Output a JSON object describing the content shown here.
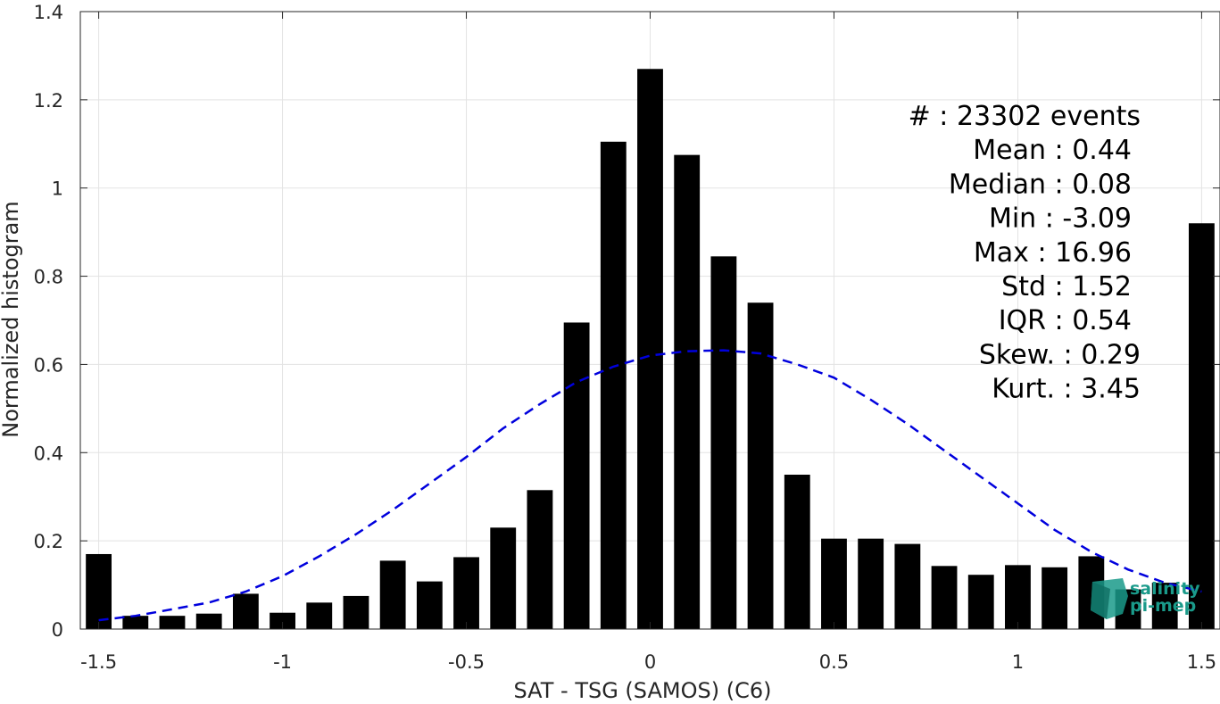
{
  "chart_data": {
    "type": "bar",
    "title": "",
    "xlabel": "SAT - TSG (SAMOS) (C6)",
    "ylabel": "Normalized histogram",
    "xlim": [
      -1.55,
      1.55
    ],
    "ylim": [
      0,
      1.4
    ],
    "grid": true,
    "xticks": [
      -1.5,
      -1,
      -0.5,
      0,
      0.5,
      1,
      1.5
    ],
    "xtick_labels": [
      "-1.5",
      "-1",
      "-0.5",
      "0",
      "0.5",
      "1",
      "1.5"
    ],
    "yticks": [
      0,
      0.2,
      0.4,
      0.6,
      0.8,
      1,
      1.2,
      1.4
    ],
    "ytick_labels": [
      "0",
      "0.2",
      "0.4",
      "0.6",
      "0.8",
      "1",
      "1.2",
      "1.4"
    ],
    "bar_width": 0.07,
    "bars": {
      "x": [
        -1.5,
        -1.4,
        -1.3,
        -1.2,
        -1.1,
        -1.0,
        -0.9,
        -0.8,
        -0.7,
        -0.6,
        -0.5,
        -0.4,
        -0.3,
        -0.2,
        -0.1,
        0.0,
        0.1,
        0.2,
        0.3,
        0.4,
        0.5,
        0.6,
        0.7,
        0.8,
        0.9,
        1.0,
        1.1,
        1.2,
        1.3,
        1.4,
        1.5
      ],
      "values": [
        0.17,
        0.03,
        0.03,
        0.035,
        0.08,
        0.037,
        0.06,
        0.075,
        0.155,
        0.108,
        0.163,
        0.23,
        0.315,
        0.695,
        1.105,
        1.27,
        1.075,
        0.845,
        0.74,
        0.35,
        0.205,
        0.205,
        0.193,
        0.143,
        0.123,
        0.145,
        0.14,
        0.165,
        0.09,
        0.105,
        0.92
      ],
      "color": "#000000"
    },
    "fit_curve": {
      "style": "dashed",
      "color": "#0000dd",
      "x": [
        -1.5,
        -1.4,
        -1.3,
        -1.2,
        -1.1,
        -1.0,
        -0.9,
        -0.8,
        -0.7,
        -0.6,
        -0.5,
        -0.4,
        -0.3,
        -0.2,
        -0.1,
        0.0,
        0.1,
        0.2,
        0.3,
        0.4,
        0.5,
        0.6,
        0.7,
        0.8,
        0.9,
        1.0,
        1.1,
        1.2,
        1.3,
        1.4,
        1.5
      ],
      "y": [
        0.02,
        0.03,
        0.045,
        0.06,
        0.085,
        0.12,
        0.165,
        0.215,
        0.27,
        0.33,
        0.39,
        0.455,
        0.51,
        0.56,
        0.595,
        0.62,
        0.63,
        0.632,
        0.625,
        0.6,
        0.57,
        0.52,
        0.465,
        0.405,
        0.345,
        0.285,
        0.225,
        0.175,
        0.135,
        0.105,
        0.085
      ]
    },
    "stats": [
      {
        "label": "#  : 23302 events"
      },
      {
        "label": "Mean : 0.44"
      },
      {
        "label": "Median : 0.08"
      },
      {
        "label": "Min : -3.09"
      },
      {
        "label": "Max : 16.96"
      },
      {
        "label": "Std : 1.52"
      },
      {
        "label": "IQR : 0.54"
      },
      {
        "label": "Skew. : 0.29"
      },
      {
        "label": "Kurt. : 3.45"
      }
    ]
  },
  "logo": {
    "text_line1": "salinity",
    "text_line2": "pi-mep",
    "color": "#1a9a8a"
  }
}
